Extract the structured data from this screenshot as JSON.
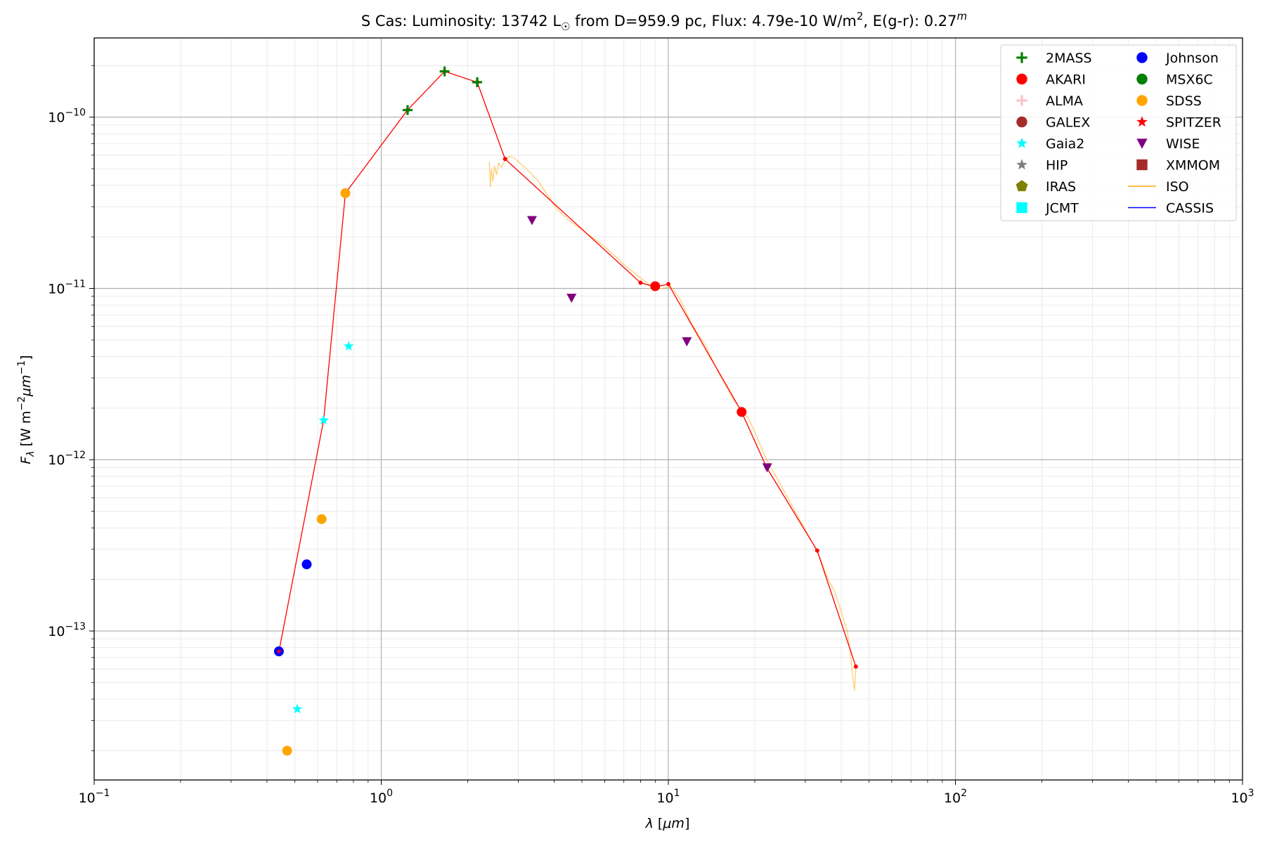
{
  "chart_data": {
    "type": "scatter",
    "title": {
      "prefix": "S Cas:  Luminosity: 13742 L",
      "sun_symbol": "☉",
      "middle": " from D=959.9 pc, Flux: 4.79e-10 W/m",
      "sup1": "2",
      "middle2": ", E(g-r): 0.27",
      "sup2": "m"
    },
    "xlabel": {
      "main": "λ [",
      "unit": "μm",
      "close": "]"
    },
    "ylabel": {
      "main": "F",
      "sub": "λ",
      "rest": " [W m",
      "sup1": "−2",
      "unit": "μm",
      "sup2": "−1",
      "close": "]"
    },
    "x_scale": "log",
    "y_scale": "log",
    "xlim": [
      0.1,
      1000
    ],
    "ylim": [
      1.35e-14,
      2.9e-10
    ],
    "grid": true,
    "legend_position": "top-right",
    "x_ticks": [
      {
        "value": 0.1,
        "base": "10",
        "exp": "−1"
      },
      {
        "value": 1,
        "base": "10",
        "exp": "0"
      },
      {
        "value": 10,
        "base": "10",
        "exp": "1"
      },
      {
        "value": 100,
        "base": "10",
        "exp": "2"
      },
      {
        "value": 1000,
        "base": "10",
        "exp": "3"
      }
    ],
    "y_ticks": [
      {
        "value": 1e-10,
        "base": "10",
        "exp": "−10"
      },
      {
        "value": 1e-11,
        "base": "10",
        "exp": "−11"
      },
      {
        "value": 1e-12,
        "base": "10",
        "exp": "−12"
      },
      {
        "value": 1e-13,
        "base": "10",
        "exp": "−13"
      }
    ],
    "legend": [
      {
        "label": "2MASS",
        "marker": "plus",
        "color": "#008000"
      },
      {
        "label": "AKARI",
        "marker": "circle",
        "color": "#ff0000"
      },
      {
        "label": "ALMA",
        "marker": "plus",
        "color": "#ffc0cb"
      },
      {
        "label": "GALEX",
        "marker": "circle",
        "color": "#a52a2a"
      },
      {
        "label": "Gaia2",
        "marker": "star",
        "color": "#00ffff"
      },
      {
        "label": "HIP",
        "marker": "star",
        "color": "#808080"
      },
      {
        "label": "IRAS",
        "marker": "pentagon",
        "color": "#808000"
      },
      {
        "label": "JCMT",
        "marker": "square",
        "color": "#00ffff"
      },
      {
        "label": "Johnson",
        "marker": "circle",
        "color": "#0000ff"
      },
      {
        "label": "MSX6C",
        "marker": "circle",
        "color": "#008000"
      },
      {
        "label": "SDSS",
        "marker": "circle",
        "color": "#ffa500"
      },
      {
        "label": "SPITZER",
        "marker": "star",
        "color": "#ff0000"
      },
      {
        "label": "WISE",
        "marker": "triangle-down",
        "color": "#800080"
      },
      {
        "label": "XMMOM",
        "marker": "square",
        "color": "#a52a2a"
      },
      {
        "label": "ISO",
        "marker": "line",
        "color": "#ffa500"
      },
      {
        "label": "CASSIS",
        "marker": "line",
        "color": "#0000ff"
      }
    ],
    "series": [
      {
        "name": "Johnson",
        "marker": "circle",
        "color": "#0000ff",
        "points": [
          [
            0.44,
            7.6e-14
          ],
          [
            0.55,
            2.45e-13
          ]
        ]
      },
      {
        "name": "SDSS",
        "marker": "circle",
        "color": "#ffa500",
        "points": [
          [
            0.47,
            2e-14
          ],
          [
            0.62,
            4.5e-13
          ],
          [
            0.75,
            3.6e-11
          ]
        ]
      },
      {
        "name": "Gaia2",
        "marker": "star",
        "color": "#00ffff",
        "points": [
          [
            0.51,
            3.5e-14
          ],
          [
            0.63,
            1.7e-12
          ],
          [
            0.77,
            4.6e-12
          ]
        ]
      },
      {
        "name": "2MASS",
        "marker": "plus",
        "color": "#008000",
        "points": [
          [
            1.235,
            1.1e-10
          ],
          [
            1.662,
            1.85e-10
          ],
          [
            2.159,
            1.6e-10
          ]
        ]
      },
      {
        "name": "AKARI",
        "marker": "circle",
        "color": "#ff0000",
        "points": [
          [
            9.0,
            1.03e-11
          ],
          [
            18.0,
            1.9e-12
          ]
        ]
      },
      {
        "name": "WISE",
        "marker": "triangle-down",
        "color": "#800080",
        "points": [
          [
            3.35,
            2.5e-11
          ],
          [
            4.6,
            8.8e-12
          ],
          [
            11.6,
            4.9e-12
          ],
          [
            22.1,
            9e-13
          ]
        ]
      },
      {
        "name": "SPITZER",
        "marker": "star",
        "color": "#ff0000",
        "points": [
          [
            0.44,
            7.6e-14
          ]
        ]
      }
    ],
    "sed_line": {
      "color": "#ff0000",
      "points": [
        [
          0.44,
          7.6e-14
        ],
        [
          0.63,
          1.7e-12
        ],
        [
          0.75,
          3.6e-11
        ],
        [
          1.235,
          1.1e-10
        ],
        [
          1.662,
          1.85e-10
        ],
        [
          2.159,
          1.6e-10
        ],
        [
          2.7,
          5.7e-11
        ],
        [
          8.0,
          1.08e-11
        ],
        [
          9.0,
          1.02e-11
        ],
        [
          10.0,
          1.06e-11
        ],
        [
          18.0,
          1.9e-12
        ],
        [
          22.0,
          9e-13
        ],
        [
          33.0,
          2.95e-13
        ],
        [
          45.0,
          6.2e-14
        ]
      ]
    },
    "iso_spectrum": {
      "color": "#ffa500",
      "points": [
        [
          2.38,
          5.5e-11
        ],
        [
          2.4,
          3.9e-11
        ],
        [
          2.42,
          5e-11
        ],
        [
          2.45,
          4.2e-11
        ],
        [
          2.48,
          5.2e-11
        ],
        [
          2.52,
          4.6e-11
        ],
        [
          2.56,
          5.4e-11
        ],
        [
          2.62,
          5.1e-11
        ],
        [
          2.7,
          5.6e-11
        ],
        [
          2.8,
          5.9e-11
        ],
        [
          2.9,
          5.8e-11
        ],
        [
          3.0,
          5.5e-11
        ],
        [
          3.2,
          5e-11
        ],
        [
          3.5,
          4.3e-11
        ],
        [
          3.8,
          3.5e-11
        ],
        [
          4.1,
          2.9e-11
        ],
        [
          4.5,
          2.5e-11
        ],
        [
          5.0,
          2.2e-11
        ],
        [
          6.0,
          1.75e-11
        ],
        [
          7.0,
          1.38e-11
        ],
        [
          8.0,
          1.15e-11
        ],
        [
          8.6,
          1.05e-11
        ],
        [
          9.0,
          1e-11
        ],
        [
          9.6,
          1e-11
        ],
        [
          10.2,
          1.03e-11
        ],
        [
          11.0,
          8.6e-12
        ],
        [
          12.0,
          6.3e-12
        ],
        [
          13.5,
          4.6e-12
        ],
        [
          15.0,
          3.2e-12
        ],
        [
          17.0,
          2.2e-12
        ],
        [
          18.0,
          1.95e-12
        ],
        [
          19.0,
          1.75e-12
        ],
        [
          20.0,
          1.45e-12
        ],
        [
          22.0,
          1e-12
        ],
        [
          25.0,
          6.8e-13
        ],
        [
          28.0,
          4.8e-13
        ],
        [
          32.0,
          3.2e-13
        ],
        [
          34.0,
          2.6e-13
        ],
        [
          36.0,
          2e-13
        ],
        [
          38.0,
          1.7e-13
        ],
        [
          40.0,
          1.3e-13
        ],
        [
          42.0,
          1e-13
        ],
        [
          43.0,
          7.5e-14
        ],
        [
          44.0,
          5.2e-14
        ],
        [
          44.5,
          4.5e-14
        ],
        [
          45.0,
          6e-14
        ]
      ]
    }
  }
}
